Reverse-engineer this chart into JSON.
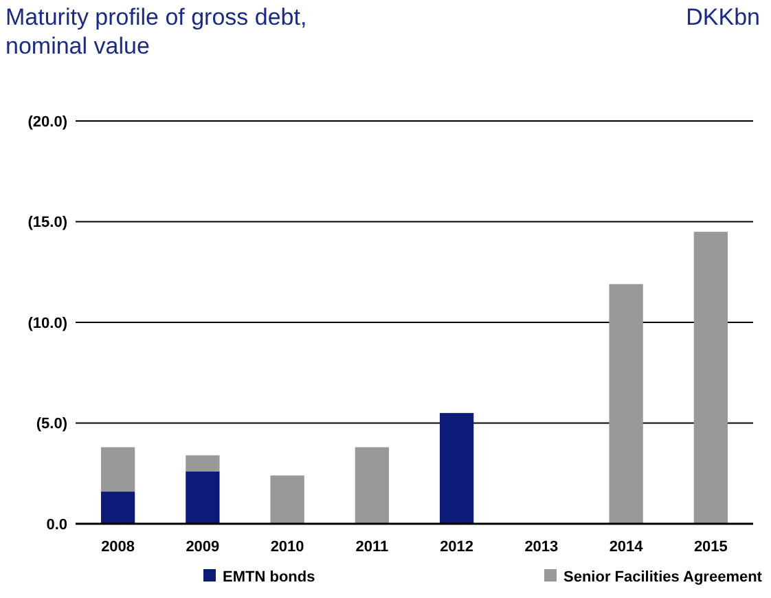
{
  "chart_data": {
    "type": "bar",
    "title": "Maturity profile of gross debt, nominal value",
    "ylabel": "DKKbn",
    "categories": [
      "2008",
      "2009",
      "2010",
      "2011",
      "2012",
      "2013",
      "2014",
      "2015"
    ],
    "series": [
      {
        "name": "EMTN bonds",
        "color": "#0c1a78",
        "values": [
          1.6,
          2.6,
          0,
          0,
          5.5,
          0,
          0,
          0
        ]
      },
      {
        "name": "Senior Facilities Agreement",
        "color": "#999999",
        "values": [
          2.2,
          0.8,
          2.4,
          3.8,
          0,
          0,
          11.9,
          14.5
        ]
      }
    ],
    "stacked": true,
    "ylim": [
      0,
      20
    ],
    "yticks": [
      {
        "value": 0,
        "label": "0.0"
      },
      {
        "value": 5,
        "label": "(5.0)"
      },
      {
        "value": 10,
        "label": "(10.0)"
      },
      {
        "value": 15,
        "label": "(15.0)"
      },
      {
        "value": 20,
        "label": "(20.0)"
      }
    ],
    "grid": "y",
    "legend": "bottom"
  }
}
